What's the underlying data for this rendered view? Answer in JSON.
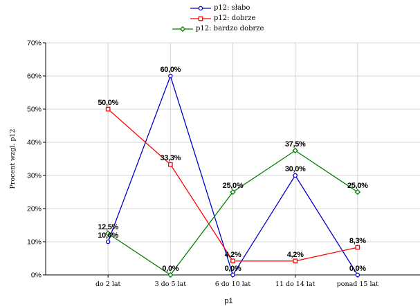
{
  "chart_data": {
    "type": "line",
    "title": "",
    "xlabel": "p1",
    "ylabel": "Procent wzgl. p12",
    "categories": [
      "do 2 lat",
      "3 do 5 lat",
      "6 do 10 lat",
      "11 do 14 lat",
      "ponad 15 lat"
    ],
    "ylim": [
      0,
      70
    ],
    "yticks": [
      "0%",
      "10%",
      "20%",
      "30%",
      "40%",
      "50%",
      "60%",
      "70%"
    ],
    "grid": true,
    "legend_position": "top-center",
    "series": [
      {
        "name": "p12: słabo",
        "color": "#0000cc",
        "marker": "circle",
        "values": [
          10.0,
          60.0,
          0.0,
          30.0,
          0.0
        ],
        "labels": [
          "10,0%",
          "60,0%",
          "0,0%",
          "30,0%",
          "0,0%"
        ]
      },
      {
        "name": "p12: dobrze",
        "color": "#ff0000",
        "marker": "square",
        "values": [
          50.0,
          33.3,
          4.2,
          4.2,
          8.3
        ],
        "labels": [
          "50,0%",
          "33,3%",
          "4,2%",
          "4,2%",
          "8,3%"
        ]
      },
      {
        "name": "p12: bardzo dobrze",
        "color": "#008000",
        "marker": "diamond",
        "values": [
          12.5,
          0.0,
          25.0,
          37.5,
          25.0
        ],
        "labels": [
          "12,5%",
          "0,0%",
          "25,0%",
          "37,5%",
          "25,0%"
        ]
      }
    ]
  }
}
